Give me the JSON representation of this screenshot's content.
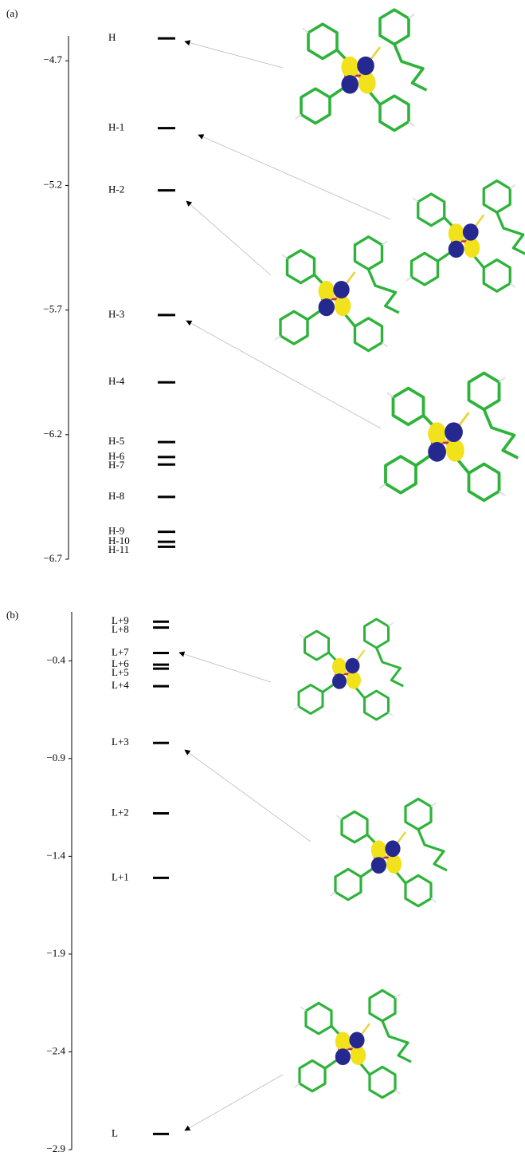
{
  "chart_data": [
    {
      "type": "levels",
      "label": "(a)",
      "color": "#000000",
      "ylim": [
        -6.7,
        -4.6
      ],
      "yticks": [
        {
          "value": -4.7,
          "label": "−4.7"
        },
        {
          "value": -5.2,
          "label": "−5.2"
        },
        {
          "value": -5.7,
          "label": "−5.7"
        },
        {
          "value": -6.2,
          "label": "−6.2"
        },
        {
          "value": -6.7,
          "label": "−6.7"
        }
      ],
      "categories": [
        "H",
        "H-1",
        "H-2",
        "H-3",
        "H-4",
        "H-5",
        "H-6",
        "H-7",
        "H-8",
        "H-9",
        "H-10",
        "H-11"
      ],
      "values": [
        -4.61,
        -4.97,
        -5.22,
        -5.72,
        -5.99,
        -6.23,
        -6.29,
        -6.32,
        -6.45,
        -6.59,
        -6.63,
        -6.65
      ]
    },
    {
      "type": "levels",
      "label": "(b)",
      "color": "#000000",
      "ylim": [
        -2.9,
        -0.15
      ],
      "yticks": [
        {
          "value": -0.4,
          "label": "−0.4"
        },
        {
          "value": -0.9,
          "label": "−0.9"
        },
        {
          "value": -1.4,
          "label": "−1.4"
        },
        {
          "value": -1.9,
          "label": "−1.9"
        },
        {
          "value": -2.4,
          "label": "−2.4"
        },
        {
          "value": -2.9,
          "label": "−2.9"
        }
      ],
      "categories": [
        "L+9",
        "L+8",
        "L+7",
        "L+6",
        "L+5",
        "L+4",
        "L+3",
        "L+2",
        "L+1",
        "L"
      ],
      "values": [
        -0.2,
        -0.23,
        -0.36,
        -0.42,
        -0.44,
        -0.53,
        -0.82,
        -1.18,
        -1.51,
        -2.82
      ]
    }
  ]
}
